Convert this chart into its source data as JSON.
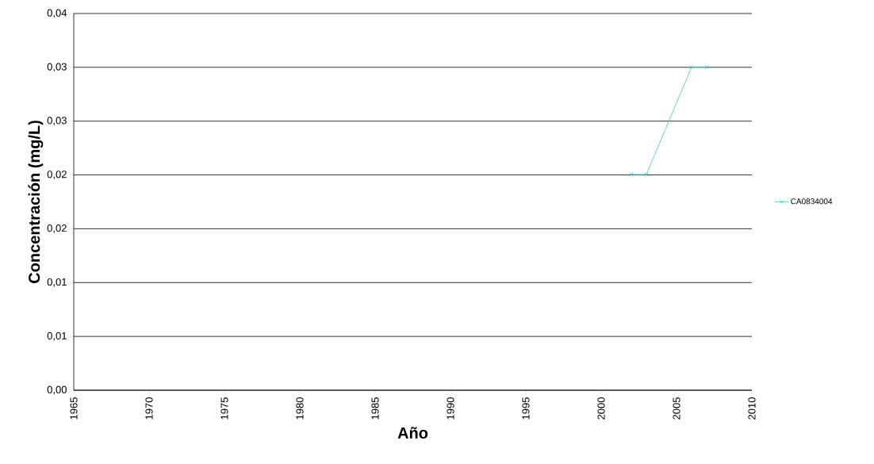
{
  "chart_data": {
    "type": "line",
    "xlabel": "Año",
    "ylabel": "Concentración (mg/L)",
    "series": [
      {
        "name": "CA0834004",
        "color": "#33cccc",
        "x": [
          2002,
          2003,
          2006,
          2007
        ],
        "values": [
          0.0229,
          0.0229,
          0.0343,
          0.0343
        ]
      }
    ],
    "xlim": [
      1965,
      2010
    ],
    "xticks": [
      1965,
      1970,
      1975,
      1980,
      1985,
      1990,
      1995,
      2000,
      2005,
      2010
    ],
    "ylim": [
      0,
      0.04
    ],
    "yticks": [
      {
        "value": 0,
        "label": "0,00"
      },
      {
        "value": 0.005714,
        "label": "0,01"
      },
      {
        "value": 0.011429,
        "label": "0,01"
      },
      {
        "value": 0.017143,
        "label": "0,02"
      },
      {
        "value": 0.022857,
        "label": "0,02"
      },
      {
        "value": 0.028571,
        "label": "0,03"
      },
      {
        "value": 0.034286,
        "label": "0,03"
      },
      {
        "value": 0.04,
        "label": "0,04"
      }
    ],
    "grid": "y",
    "legend": "right",
    "marker": "cross",
    "line_style": "solid"
  }
}
